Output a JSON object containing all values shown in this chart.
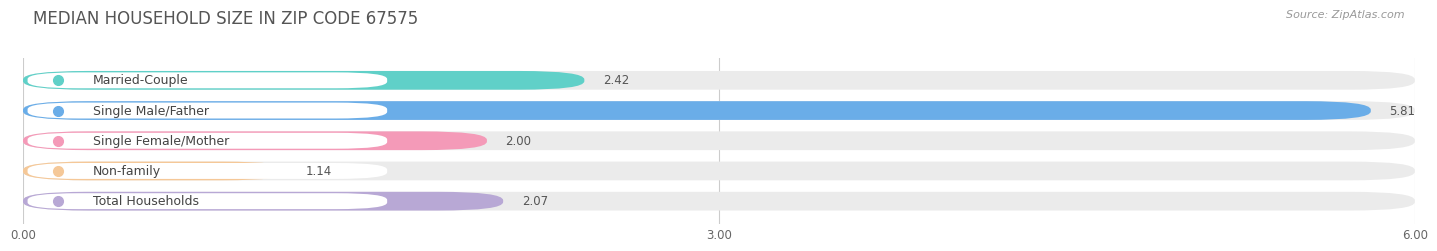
{
  "title": "MEDIAN HOUSEHOLD SIZE IN ZIP CODE 67575",
  "source": "Source: ZipAtlas.com",
  "categories": [
    "Married-Couple",
    "Single Male/Father",
    "Single Female/Mother",
    "Non-family",
    "Total Households"
  ],
  "values": [
    2.42,
    5.81,
    2.0,
    1.14,
    2.07
  ],
  "bar_colors": [
    "#60d0c8",
    "#6aade8",
    "#f49ab8",
    "#f5c898",
    "#b8a8d5"
  ],
  "bar_bg_colors": [
    "#ebebeb",
    "#ebebeb",
    "#ebebeb",
    "#ebebeb",
    "#ebebeb"
  ],
  "label_dot_colors": [
    "#60d0c8",
    "#6aade8",
    "#f49ab8",
    "#f5c898",
    "#b8a8d5"
  ],
  "xlim": [
    0,
    6.0
  ],
  "xticks": [
    0.0,
    3.0,
    6.0
  ],
  "xtick_labels": [
    "0.00",
    "3.00",
    "6.00"
  ],
  "value_fontsize": 8.5,
  "label_fontsize": 9,
  "title_fontsize": 12,
  "source_fontsize": 8,
  "bg_color": "#ffffff"
}
